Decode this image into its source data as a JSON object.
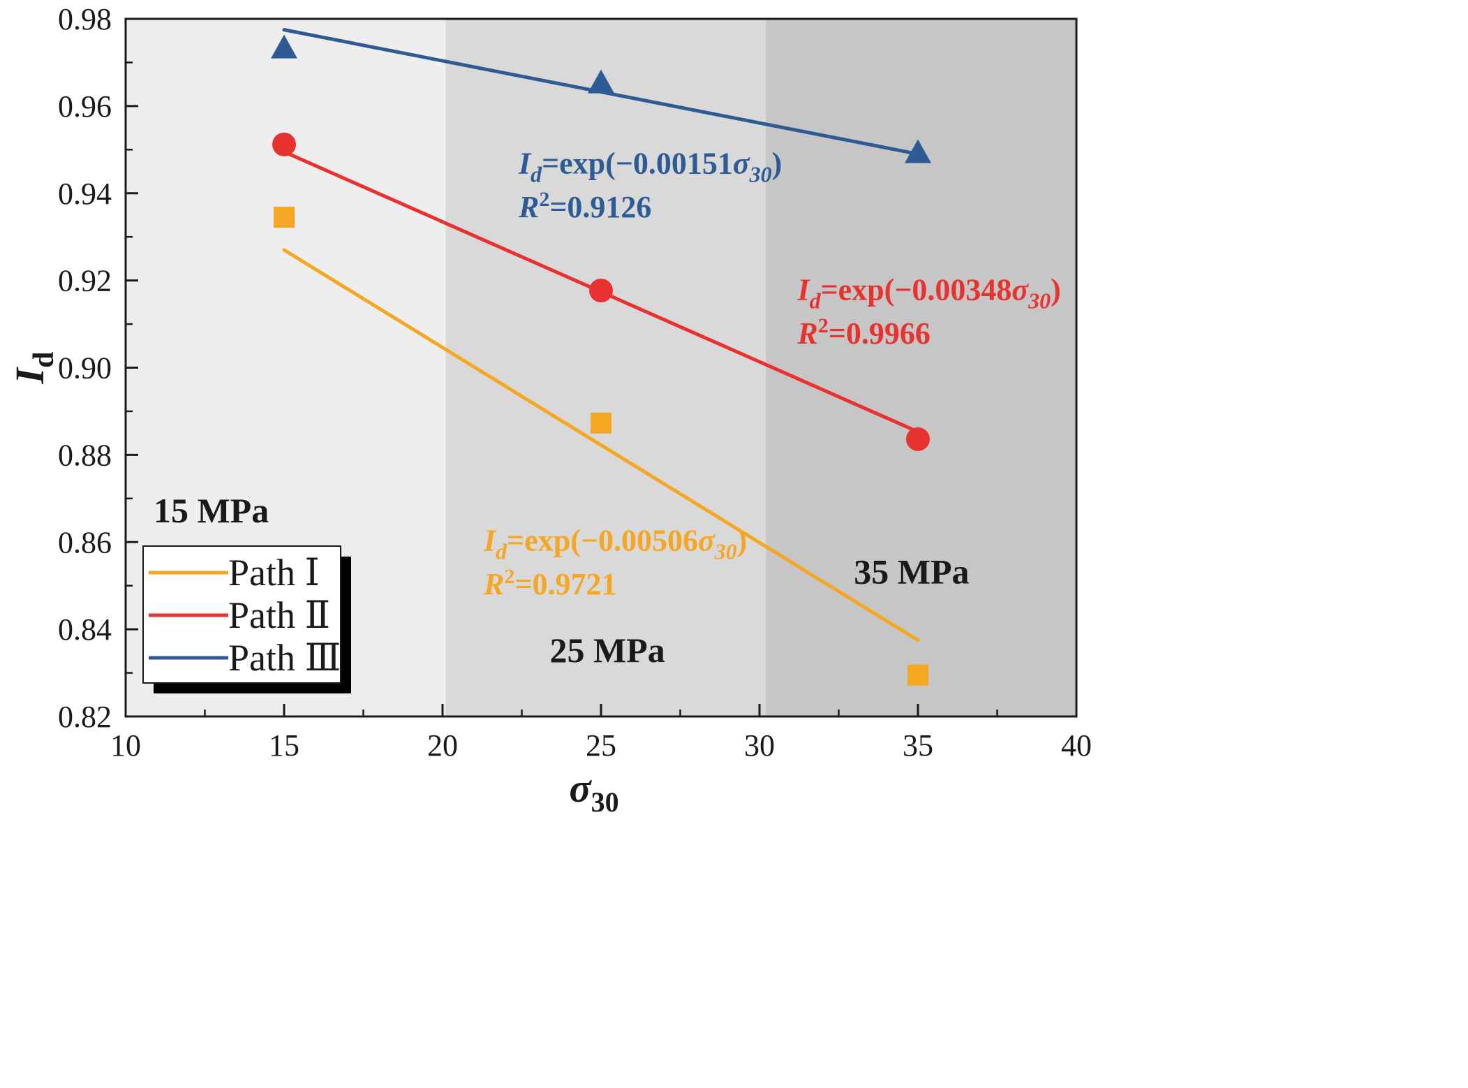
{
  "chart_data": {
    "type": "scatter",
    "xlabel": "σ",
    "xlabel_sub": "30",
    "ylabel": "I",
    "ylabel_sub": "d",
    "xlim": [
      10,
      40
    ],
    "ylim": [
      0.82,
      0.98
    ],
    "x_ticks": [
      "10",
      "15",
      "20",
      "25",
      "30",
      "35",
      "40"
    ],
    "x_tick_values": [
      10,
      15,
      20,
      25,
      30,
      35,
      40
    ],
    "y_ticks": [
      "0.82",
      "0.84",
      "0.86",
      "0.88",
      "0.90",
      "0.92",
      "0.94",
      "0.96",
      "0.98"
    ],
    "y_tick_values": [
      0.82,
      0.84,
      0.86,
      0.88,
      0.9,
      0.92,
      0.94,
      0.96,
      0.98
    ],
    "regions": [
      {
        "label": "15 MPa",
        "x_from": 10,
        "x_to": 20.1,
        "color": "#eeeeee",
        "label_x": 12.7,
        "label_y": 0.8645
      },
      {
        "label": "25 MPa",
        "x_from": 20.1,
        "x_to": 30.2,
        "color": "#d9d9d9",
        "label_x": 25.2,
        "label_y": 0.8325
      },
      {
        "label": "35 MPa",
        "x_from": 30.2,
        "x_to": 40,
        "color": "#c6c6c6",
        "label_x": 34.8,
        "label_y": 0.8505
      }
    ],
    "series": [
      {
        "name": "Path Ⅰ",
        "color": "#f5a623",
        "marker": "square",
        "x": [
          15,
          25,
          35
        ],
        "y": [
          0.9345,
          0.8873,
          0.8295
        ],
        "fit_line": {
          "x": [
            15,
            35
          ],
          "y": [
            0.927,
            0.8375
          ]
        },
        "equation": {
          "var": "I",
          "sub": "d",
          "text": "=exp(−0.00506",
          "sigma": "σ",
          "sigma_sub": "30",
          "close": ")",
          "r2_var": "R",
          "r2_sup": "2",
          "r2_text": "=0.9721"
        },
        "eq_pos": {
          "x": 21.3,
          "y_line1": 0.858,
          "y_line2": 0.848
        }
      },
      {
        "name": "Path Ⅱ",
        "color": "#e8322f",
        "marker": "circle",
        "x": [
          15,
          25,
          35
        ],
        "y": [
          0.9512,
          0.9177,
          0.8836
        ],
        "fit_line": {
          "x": [
            15,
            35
          ],
          "y": [
            0.9495,
            0.8853
          ]
        },
        "equation": {
          "var": "I",
          "sub": "d",
          "text": "=exp(−0.00348",
          "sigma": "σ",
          "sigma_sub": "30",
          "close": ")",
          "r2_var": "R",
          "r2_sup": "2",
          "r2_text": "=0.9966"
        },
        "eq_pos": {
          "x": 31.2,
          "y_line1": 0.9155,
          "y_line2": 0.9055
        }
      },
      {
        "name": "Path Ⅲ",
        "color": "#2f5b95",
        "marker": "triangle",
        "x": [
          15,
          25,
          35
        ],
        "y": [
          0.973,
          0.965,
          0.949
        ],
        "fit_line": {
          "x": [
            15,
            35
          ],
          "y": [
            0.9775,
            0.949
          ]
        },
        "equation": {
          "var": "I",
          "sub": "d",
          "text": "=exp(−0.00151",
          "sigma": "σ",
          "sigma_sub": "30",
          "close": ")",
          "r2_var": "R",
          "r2_sup": "2",
          "r2_text": "=0.9126"
        },
        "eq_pos": {
          "x": 22.4,
          "y_line1": 0.9445,
          "y_line2": 0.9345
        }
      }
    ],
    "legend": {
      "position": "bottom-left",
      "entries": [
        "Path Ⅰ",
        "Path Ⅱ",
        "Path Ⅲ"
      ]
    }
  }
}
